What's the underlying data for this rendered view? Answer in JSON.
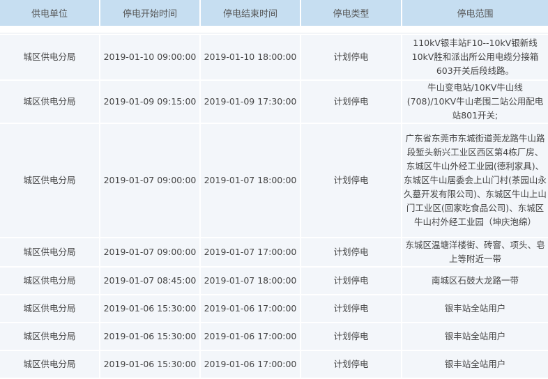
{
  "headers": [
    "供电单位",
    "停电开始时间",
    "停电结束时间",
    "停电类型",
    "停电范围"
  ],
  "rows": [
    [
      "城区供电分局",
      "2019-01-10 09:00:00",
      "2019-01-10 18:00:00",
      "计划停电",
      "110kV银丰站F10--10kV银新线10kV胜和派出所公用电缆分接箱603开关后段线路。"
    ],
    [
      "城区供电分局",
      "2019-01-09 09:15:00",
      "2019-01-09 17:30:00",
      "计划停电",
      "牛山变电站/10KV牛山线(708)/10KV牛山老围二站公用配电站801开关;"
    ],
    [
      "城区供电分局",
      "2019-01-07 09:00:00",
      "2019-01-07 18:00:00",
      "计划停电",
      "广东省东莞市东城街道莞龙路牛山路段堑头新兴工业区西区第4栋厂房、东城区牛山外经工业园(德利家具)、东城区牛山居委会上山门村(茶园山永久墓开发有限公司)、东城区牛山上山门工业区(回家吃食品公司)、东城区牛山村外经工业园（坤庆泡绵）"
    ],
    [
      "城区供电分局",
      "2019-01-07 09:00:00",
      "2019-01-07 17:00:00",
      "计划停电",
      "东城区温塘洋楼街、砖窨、项头、皂上等附近一带"
    ],
    [
      "城区供电分局",
      "2019-01-07 08:45:00",
      "2019-01-07 18:00:00",
      "计划停电",
      "南城区石鼓大龙路一带"
    ],
    [
      "城区供电分局",
      "2019-01-06 15:30:00",
      "2019-01-06 17:00:00",
      "计划停电",
      "银丰站全站用户"
    ],
    [
      "城区供电分局",
      "2019-01-06 15:30:00",
      "2019-01-06 17:00:00",
      "计划停电",
      "银丰站全站用户"
    ],
    [
      "城区供电分局",
      "2019-01-06 15:30:00",
      "2019-01-06 17:00:00",
      "计划停电",
      "银丰站全站用户"
    ]
  ]
}
